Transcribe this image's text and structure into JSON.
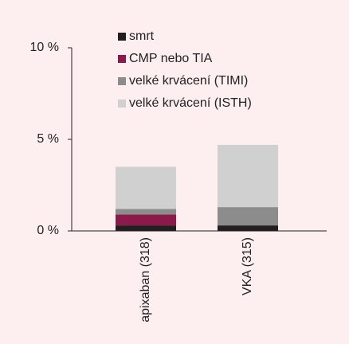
{
  "chart_data": {
    "type": "stacked_bar",
    "categories": [
      "apixaban (318)",
      "VKA (315)"
    ],
    "series": [
      {
        "name": "smrt",
        "color": "#231f20",
        "values": [
          0.3,
          0.3
        ]
      },
      {
        "name": "CMP nebo TIA",
        "color": "#8b1a4a",
        "values": [
          0.6,
          0
        ]
      },
      {
        "name": "velké krvácení (TIMI)",
        "color": "#8c8c8c",
        "values": [
          0.3,
          1.0
        ]
      },
      {
        "name": "velké krvácení (ISTH)",
        "color": "#d0d0d0",
        "values": [
          2.3,
          3.4
        ]
      }
    ],
    "ylim": [
      0,
      10
    ],
    "yticks": [
      {
        "value": 0,
        "label": "0 %"
      },
      {
        "value": 5,
        "label": "5 %"
      },
      {
        "value": 10,
        "label": "10 %"
      }
    ],
    "legend": "top"
  }
}
